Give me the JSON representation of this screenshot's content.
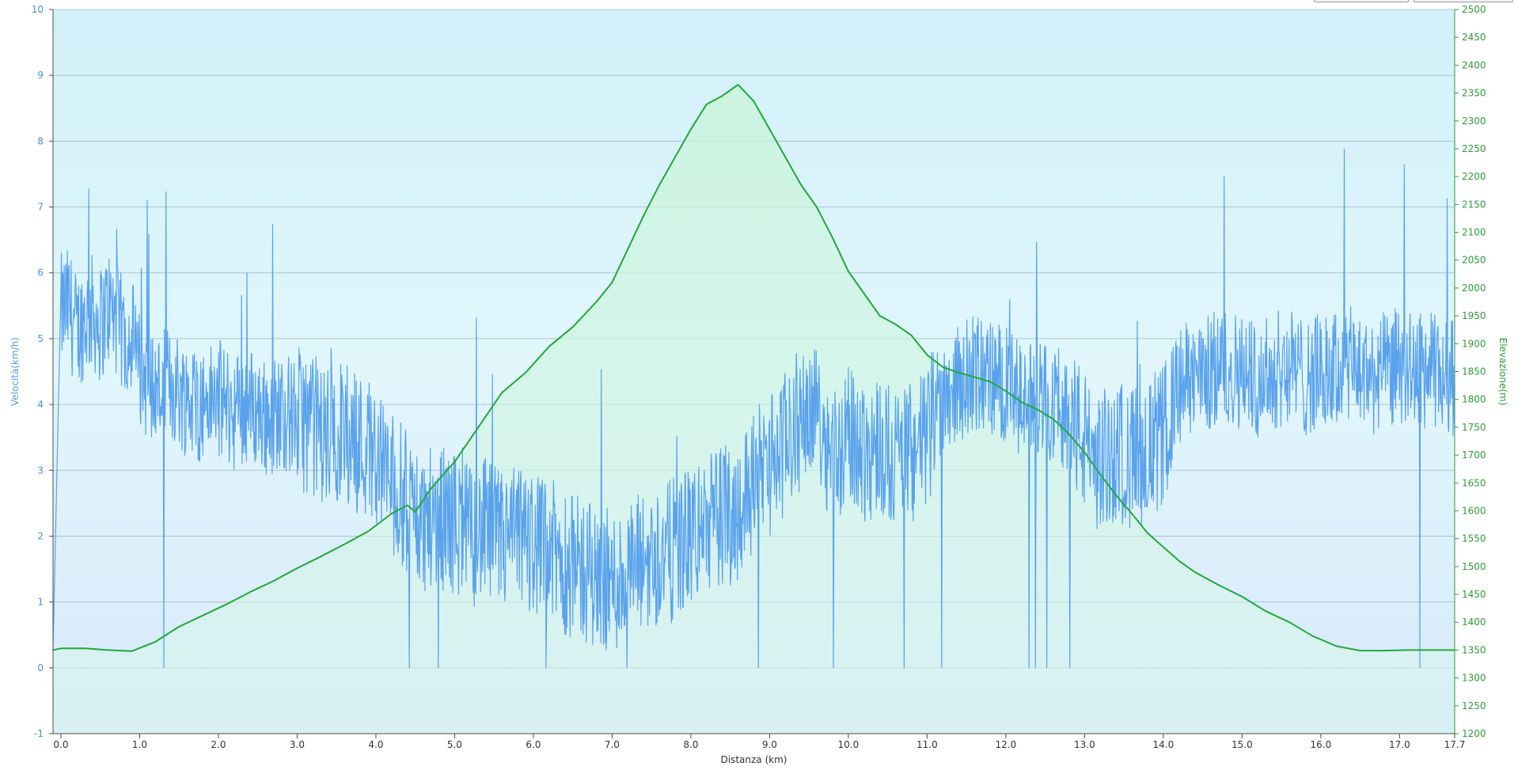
{
  "chart_data": {
    "type": "line",
    "xlabel": "Distanza  (km)",
    "ylabel_left": "Velocità(km/h)",
    "ylabel_right": "Elevazione(m)",
    "xlim": [
      -0.1,
      17.7
    ],
    "ylim_left": [
      -1,
      10
    ],
    "ylim_right": [
      1200,
      2500
    ],
    "x_ticks": [
      "0.0",
      "1.0",
      "2.0",
      "3.0",
      "4.0",
      "5.0",
      "6.0",
      "7.0",
      "8.0",
      "9.0",
      "10.0",
      "11.0",
      "12.0",
      "13.0",
      "14.0",
      "15.0",
      "16.0",
      "17.0",
      "17.7"
    ],
    "x_tick_values": [
      0,
      1,
      2,
      3,
      4,
      5,
      6,
      7,
      8,
      9,
      10,
      11,
      12,
      13,
      14,
      15,
      16,
      17,
      17.7
    ],
    "left_ticks": [
      "-1",
      "0",
      "1",
      "2",
      "3",
      "4",
      "5",
      "6",
      "7",
      "8",
      "9",
      "10"
    ],
    "left_tick_values": [
      -1,
      0,
      1,
      2,
      3,
      4,
      5,
      6,
      7,
      8,
      9,
      10
    ],
    "right_ticks": [
      "1200",
      "1250",
      "1300",
      "1350",
      "1400",
      "1450",
      "1500",
      "1550",
      "1600",
      "1650",
      "1700",
      "1750",
      "1800",
      "1850",
      "1900",
      "1950",
      "2000",
      "2050",
      "2100",
      "2150",
      "2200",
      "2250",
      "2300",
      "2350",
      "2400",
      "2450",
      "2500"
    ],
    "right_tick_values": [
      1200,
      1250,
      1300,
      1350,
      1400,
      1450,
      1500,
      1550,
      1600,
      1650,
      1700,
      1750,
      1800,
      1850,
      1900,
      1950,
      2000,
      2050,
      2100,
      2150,
      2200,
      2250,
      2300,
      2350,
      2400,
      2450,
      2500
    ],
    "grid": true,
    "series": [
      {
        "axis": "right",
        "color": "#22a83a",
        "fill": true,
        "x": [
          -0.1,
          0.0,
          0.3,
          0.6,
          0.9,
          1.2,
          1.5,
          1.8,
          2.1,
          2.4,
          2.7,
          3.0,
          3.3,
          3.6,
          3.9,
          4.2,
          4.4,
          4.5,
          4.7,
          5.0,
          5.3,
          5.6,
          5.9,
          6.2,
          6.5,
          6.8,
          7.0,
          7.2,
          7.4,
          7.6,
          7.8,
          8.0,
          8.2,
          8.4,
          8.6,
          8.8,
          9.0,
          9.2,
          9.4,
          9.6,
          9.8,
          10.0,
          10.2,
          10.4,
          10.6,
          10.8,
          11.0,
          11.2,
          11.4,
          11.6,
          11.8,
          12.0,
          12.2,
          12.4,
          12.6,
          12.8,
          13.0,
          13.2,
          13.4,
          13.6,
          13.8,
          14.0,
          14.2,
          14.4,
          14.7,
          15.0,
          15.3,
          15.6,
          15.9,
          16.2,
          16.5,
          16.8,
          17.1,
          17.4,
          17.7
        ],
        "y": [
          1350,
          1353,
          1353,
          1350,
          1348,
          1365,
          1392,
          1412,
          1432,
          1454,
          1474,
          1497,
          1518,
          1540,
          1563,
          1595,
          1610,
          1598,
          1640,
          1688,
          1750,
          1812,
          1848,
          1895,
          1930,
          1975,
          2010,
          2070,
          2130,
          2185,
          2235,
          2285,
          2330,
          2345,
          2365,
          2335,
          2285,
          2235,
          2185,
          2145,
          2090,
          2030,
          1990,
          1950,
          1935,
          1915,
          1880,
          1858,
          1848,
          1840,
          1832,
          1815,
          1795,
          1782,
          1765,
          1738,
          1705,
          1665,
          1628,
          1595,
          1560,
          1535,
          1510,
          1490,
          1467,
          1446,
          1420,
          1400,
          1375,
          1357,
          1349,
          1349,
          1350,
          1350,
          1350
        ]
      },
      {
        "axis": "left",
        "color": "#5aa2ec",
        "x": [
          -0.1,
          0.0,
          0.1,
          0.2,
          0.3,
          0.4,
          0.5,
          0.6,
          0.7,
          0.8,
          0.9,
          1.0,
          1.2,
          1.4,
          1.6,
          1.8,
          2.0,
          2.2,
          2.4,
          2.6,
          2.8,
          3.0,
          3.2,
          3.4,
          3.6,
          3.8,
          4.0,
          4.2,
          4.4,
          4.6,
          4.8,
          5.0,
          5.2,
          5.4,
          5.6,
          5.8,
          6.0,
          6.2,
          6.4,
          6.6,
          6.8,
          7.0,
          7.2,
          7.4,
          7.6,
          7.8,
          8.0,
          8.2,
          8.4,
          8.6,
          8.8,
          9.0,
          9.2,
          9.4,
          9.6,
          9.8,
          10.0,
          10.2,
          10.4,
          10.6,
          10.8,
          11.0,
          11.2,
          11.4,
          11.6,
          11.8,
          12.0,
          12.2,
          12.4,
          12.6,
          12.8,
          13.0,
          13.2,
          13.4,
          13.6,
          13.8,
          14.0,
          14.2,
          14.4,
          14.6,
          14.8,
          15.0,
          15.2,
          15.4,
          15.6,
          15.8,
          16.0,
          16.2,
          16.4,
          16.6,
          16.8,
          17.0,
          17.2,
          17.4,
          17.7
        ],
        "y": [
          0.3,
          5.4,
          5.5,
          5.1,
          5.3,
          5.4,
          5.2,
          5.5,
          5.3,
          5.0,
          5.1,
          4.5,
          4.2,
          4.3,
          4.1,
          4.0,
          4.1,
          3.9,
          4.0,
          3.8,
          3.9,
          3.8,
          3.7,
          3.5,
          3.6,
          3.4,
          3.3,
          2.8,
          2.5,
          2.2,
          2.3,
          2.2,
          2.0,
          2.1,
          1.9,
          2.0,
          1.9,
          1.8,
          1.6,
          1.5,
          1.4,
          1.3,
          1.4,
          1.6,
          1.7,
          1.8,
          2.0,
          2.2,
          2.3,
          2.4,
          2.9,
          3.1,
          3.4,
          3.8,
          4.0,
          3.2,
          3.5,
          3.3,
          3.4,
          3.2,
          3.3,
          3.5,
          4.2,
          4.3,
          4.5,
          4.4,
          4.3,
          4.0,
          4.1,
          4.0,
          3.9,
          3.4,
          3.1,
          3.3,
          3.2,
          3.3,
          3.5,
          4.3,
          4.4,
          4.5,
          4.6,
          4.5,
          4.4,
          4.5,
          4.6,
          4.4,
          4.5,
          4.5,
          4.6,
          4.4,
          4.5,
          4.6,
          4.5,
          4.5,
          4.4
        ]
      }
    ]
  },
  "colors": {
    "speed": "#5aa2ec",
    "elevation": "#22a83a",
    "grid": "#a9c3cf"
  }
}
